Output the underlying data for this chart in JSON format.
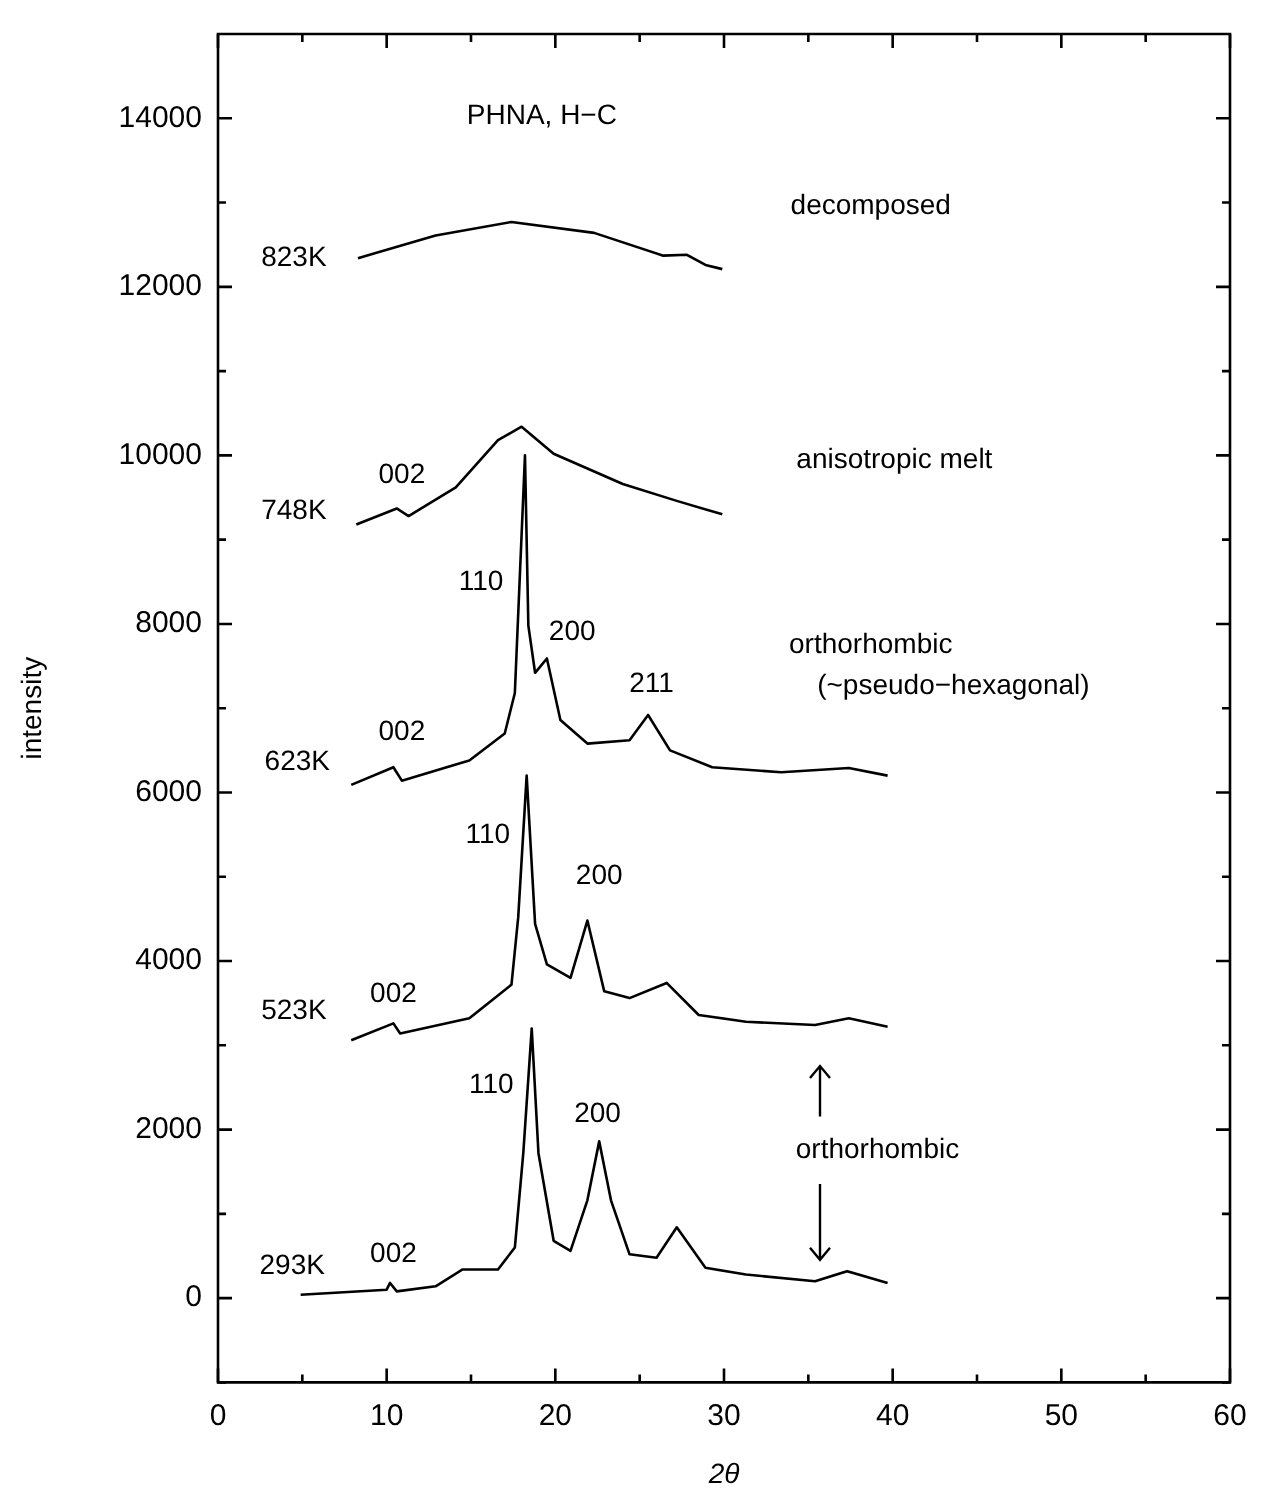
{
  "chart_data": {
    "type": "line",
    "title": "PHNA, H−C",
    "xlabel": "2θ",
    "ylabel": "intensity",
    "legend": false,
    "grid": false,
    "xlim": [
      0,
      60
    ],
    "xticks": [
      0,
      {
        "value": 5,
        "label": null
      },
      10,
      {
        "value": 15,
        "label": null
      },
      20,
      {
        "value": 25,
        "label": null
      },
      30,
      {
        "value": 35,
        "label": null
      },
      40,
      {
        "value": 45,
        "label": null
      },
      50,
      {
        "value": 55,
        "label": null
      },
      60
    ],
    "ylim": [
      -1000,
      15000
    ],
    "yticks": [
      {
        "value": -1000,
        "label": null
      },
      0,
      {
        "value": 1000,
        "label": null
      },
      2000,
      {
        "value": 3000,
        "label": null
      },
      4000,
      {
        "value": 5000,
        "label": null
      },
      6000,
      {
        "value": 7000,
        "label": null
      },
      8000,
      {
        "value": 9000,
        "label": null
      },
      10000,
      {
        "value": 11000,
        "label": null
      },
      12000,
      {
        "value": 13000,
        "label": null
      },
      14000
    ],
    "series": [
      {
        "color": "#000000",
        "x": [
          8.3,
          12.9,
          17.4,
          22.3,
          26.4,
          27.8,
          28.9,
          29.9
        ],
        "values": [
          12340,
          12610,
          12770,
          12640,
          12370,
          12380,
          12260,
          12210
        ]
      },
      {
        "color": "#000000",
        "x": [
          8.2,
          10.6,
          11.3,
          14.1,
          16.6,
          18.0,
          19.9,
          24.0,
          27.2,
          29.9
        ],
        "values": [
          9180,
          9370,
          9280,
          9620,
          10180,
          10340,
          10020,
          9660,
          9460,
          9300
        ]
      },
      {
        "color": "#000000",
        "x": [
          7.9,
          10.4,
          10.9,
          14.9,
          17.0,
          17.6,
          18.2,
          18.4,
          18.8,
          19.5,
          20.3,
          21.9,
          24.4,
          25.5,
          26.8,
          29.3,
          33.4,
          37.4,
          39.7
        ],
        "values": [
          6090,
          6300,
          6140,
          6380,
          6700,
          7180,
          10000,
          7980,
          7420,
          7590,
          6860,
          6580,
          6620,
          6920,
          6500,
          6300,
          6240,
          6290,
          6200
        ]
      },
      {
        "color": "#000000",
        "x": [
          7.9,
          10.4,
          10.8,
          14.9,
          17.4,
          17.8,
          18.3,
          18.8,
          19.5,
          20.9,
          21.9,
          22.9,
          24.4,
          26.6,
          28.5,
          31.3,
          35.4,
          37.4,
          39.7
        ],
        "values": [
          3060,
          3260,
          3140,
          3320,
          3720,
          4520,
          6200,
          4440,
          3960,
          3800,
          4480,
          3640,
          3560,
          3740,
          3360,
          3280,
          3240,
          3320,
          3220
        ]
      },
      {
        "color": "#000000",
        "x": [
          4.9,
          10.0,
          10.2,
          10.6,
          12.9,
          14.5,
          16.6,
          17.6,
          18.1,
          18.6,
          19.0,
          19.9,
          20.9,
          21.9,
          22.6,
          23.3,
          24.4,
          26.0,
          27.2,
          28.9,
          31.3,
          35.4,
          37.3,
          39.7
        ],
        "values": [
          40,
          100,
          180,
          80,
          140,
          340,
          340,
          600,
          1720,
          3200,
          1720,
          680,
          560,
          1160,
          1860,
          1160,
          520,
          480,
          840,
          360,
          280,
          200,
          320,
          180
        ]
      }
    ],
    "annotations": [
      "823K",
      "748K",
      "623K",
      "523K",
      "293K",
      "002",
      "110",
      "200",
      "211",
      "002",
      "110",
      "200",
      "002",
      "110",
      "200",
      "002",
      "decomposed",
      "anisotropic melt",
      "orthorhombic",
      "(~pseudo−hexagonal)",
      "orthorhombic"
    ]
  }
}
